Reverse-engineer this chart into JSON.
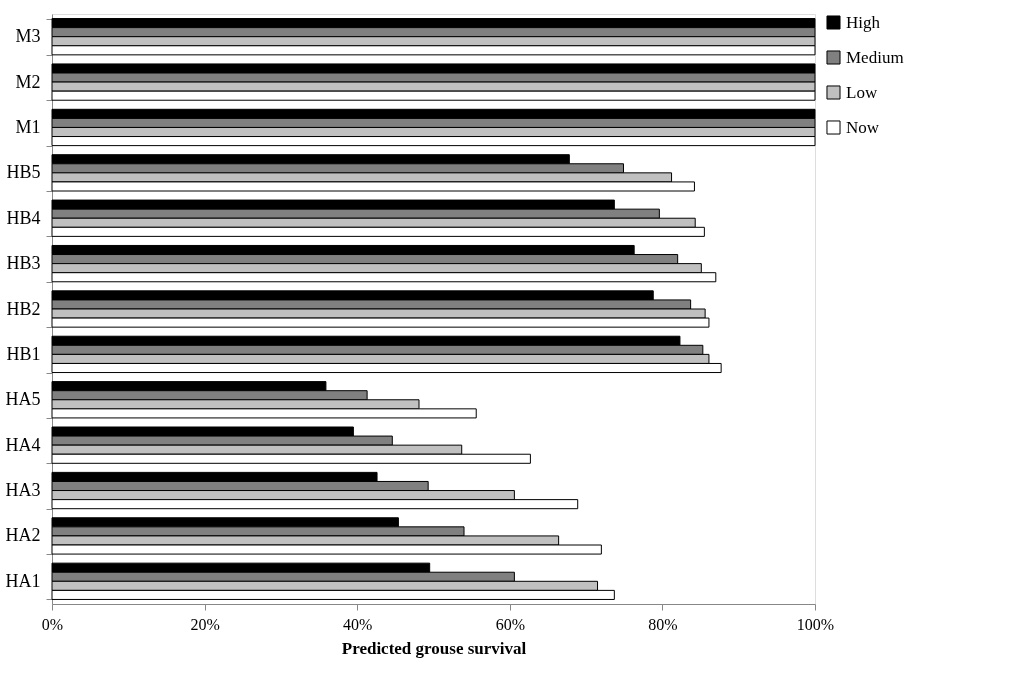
{
  "chart_data": {
    "type": "bar",
    "orientation": "horizontal",
    "xlabel": "Predicted grouse survival",
    "categories": [
      "M3",
      "M2",
      "M1",
      "HB5",
      "HB4",
      "HB3",
      "HB2",
      "HB1",
      "HA5",
      "HA4",
      "HA3",
      "HA2",
      "HA1"
    ],
    "series": [
      {
        "name": "High",
        "color": "#000000",
        "values": [
          100,
          100,
          100,
          67.8,
          73.7,
          76.3,
          78.8,
          82.3,
          35.9,
          39.5,
          42.6,
          45.4,
          49.5
        ]
      },
      {
        "name": "Medium",
        "color": "#808080",
        "values": [
          100,
          100,
          100,
          74.9,
          79.6,
          82.0,
          83.7,
          85.3,
          41.3,
          44.6,
          49.3,
          54.0,
          60.6
        ]
      },
      {
        "name": "Low",
        "color": "#c0c0c0",
        "values": [
          100,
          100,
          100,
          81.2,
          84.3,
          85.1,
          85.6,
          86.1,
          48.1,
          53.7,
          60.6,
          66.4,
          71.5
        ]
      },
      {
        "name": "Now",
        "color": "#ffffff",
        "values": [
          100,
          100,
          100,
          84.2,
          85.5,
          87.0,
          86.1,
          87.7,
          55.6,
          62.7,
          68.9,
          72.0,
          73.7
        ]
      }
    ],
    "xlim": [
      0,
      100
    ],
    "xticks": [
      {
        "value": 0,
        "label": "0%"
      },
      {
        "value": 20,
        "label": "20%"
      },
      {
        "value": 40,
        "label": "40%"
      },
      {
        "value": 60,
        "label": "60%"
      },
      {
        "value": 80,
        "label": "80%"
      },
      {
        "value": 100,
        "label": "100%"
      }
    ],
    "grid": false,
    "legend": "right"
  }
}
